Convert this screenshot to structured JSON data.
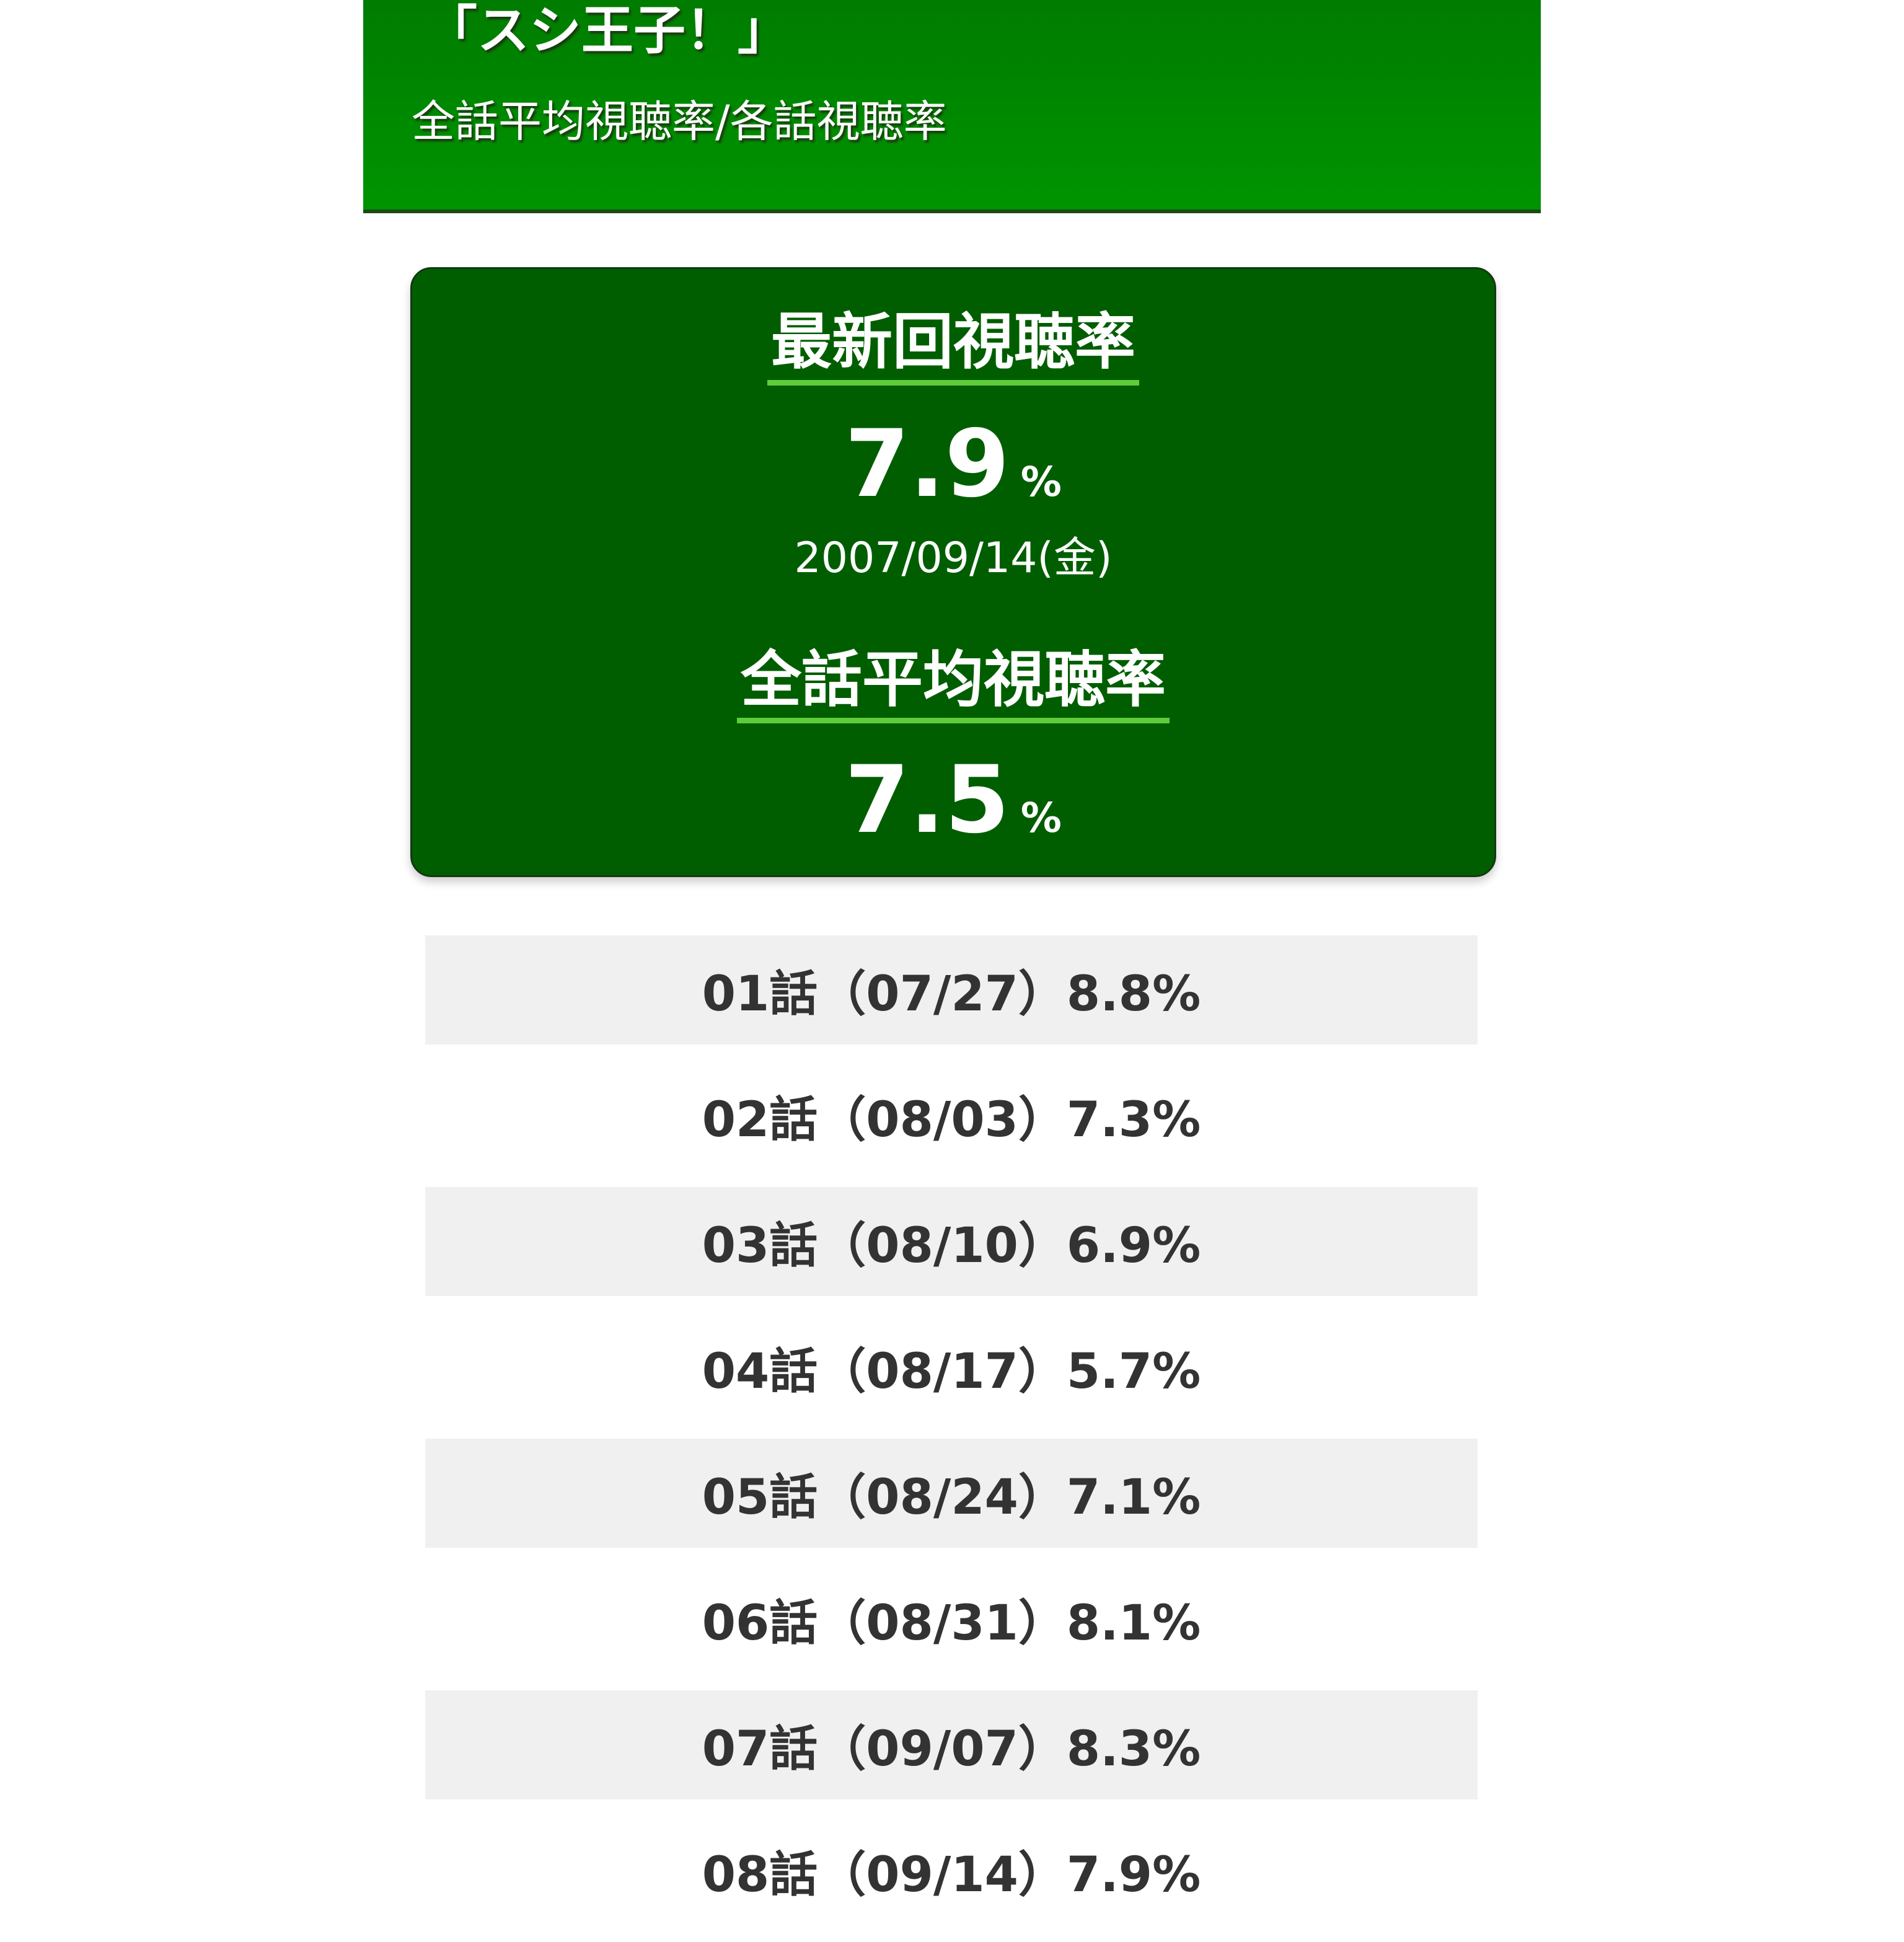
{
  "header": {
    "title": "「スシ王子！」",
    "subtitle": "全話平均視聴率/各話視聴率"
  },
  "summary": {
    "latest_heading": "最新回視聴率",
    "latest_value": "7.9",
    "latest_unit": "%",
    "latest_date": "2007/09/14(金)",
    "average_heading": "全話平均視聴率",
    "average_value": "7.5",
    "average_unit": "%"
  },
  "episodes": [
    "01話（07/27）8.8%",
    "02話（08/03）7.3%",
    "03話（08/10）6.9%",
    "04話（08/17）5.7%",
    "05話（08/24）7.1%",
    "06話（08/31）8.1%",
    "07話（09/07）8.3%",
    "08話（09/14）7.9%"
  ],
  "colors": {
    "header_green": "#009400",
    "box_green": "#005e00",
    "underline_green": "#5fcc3a"
  }
}
